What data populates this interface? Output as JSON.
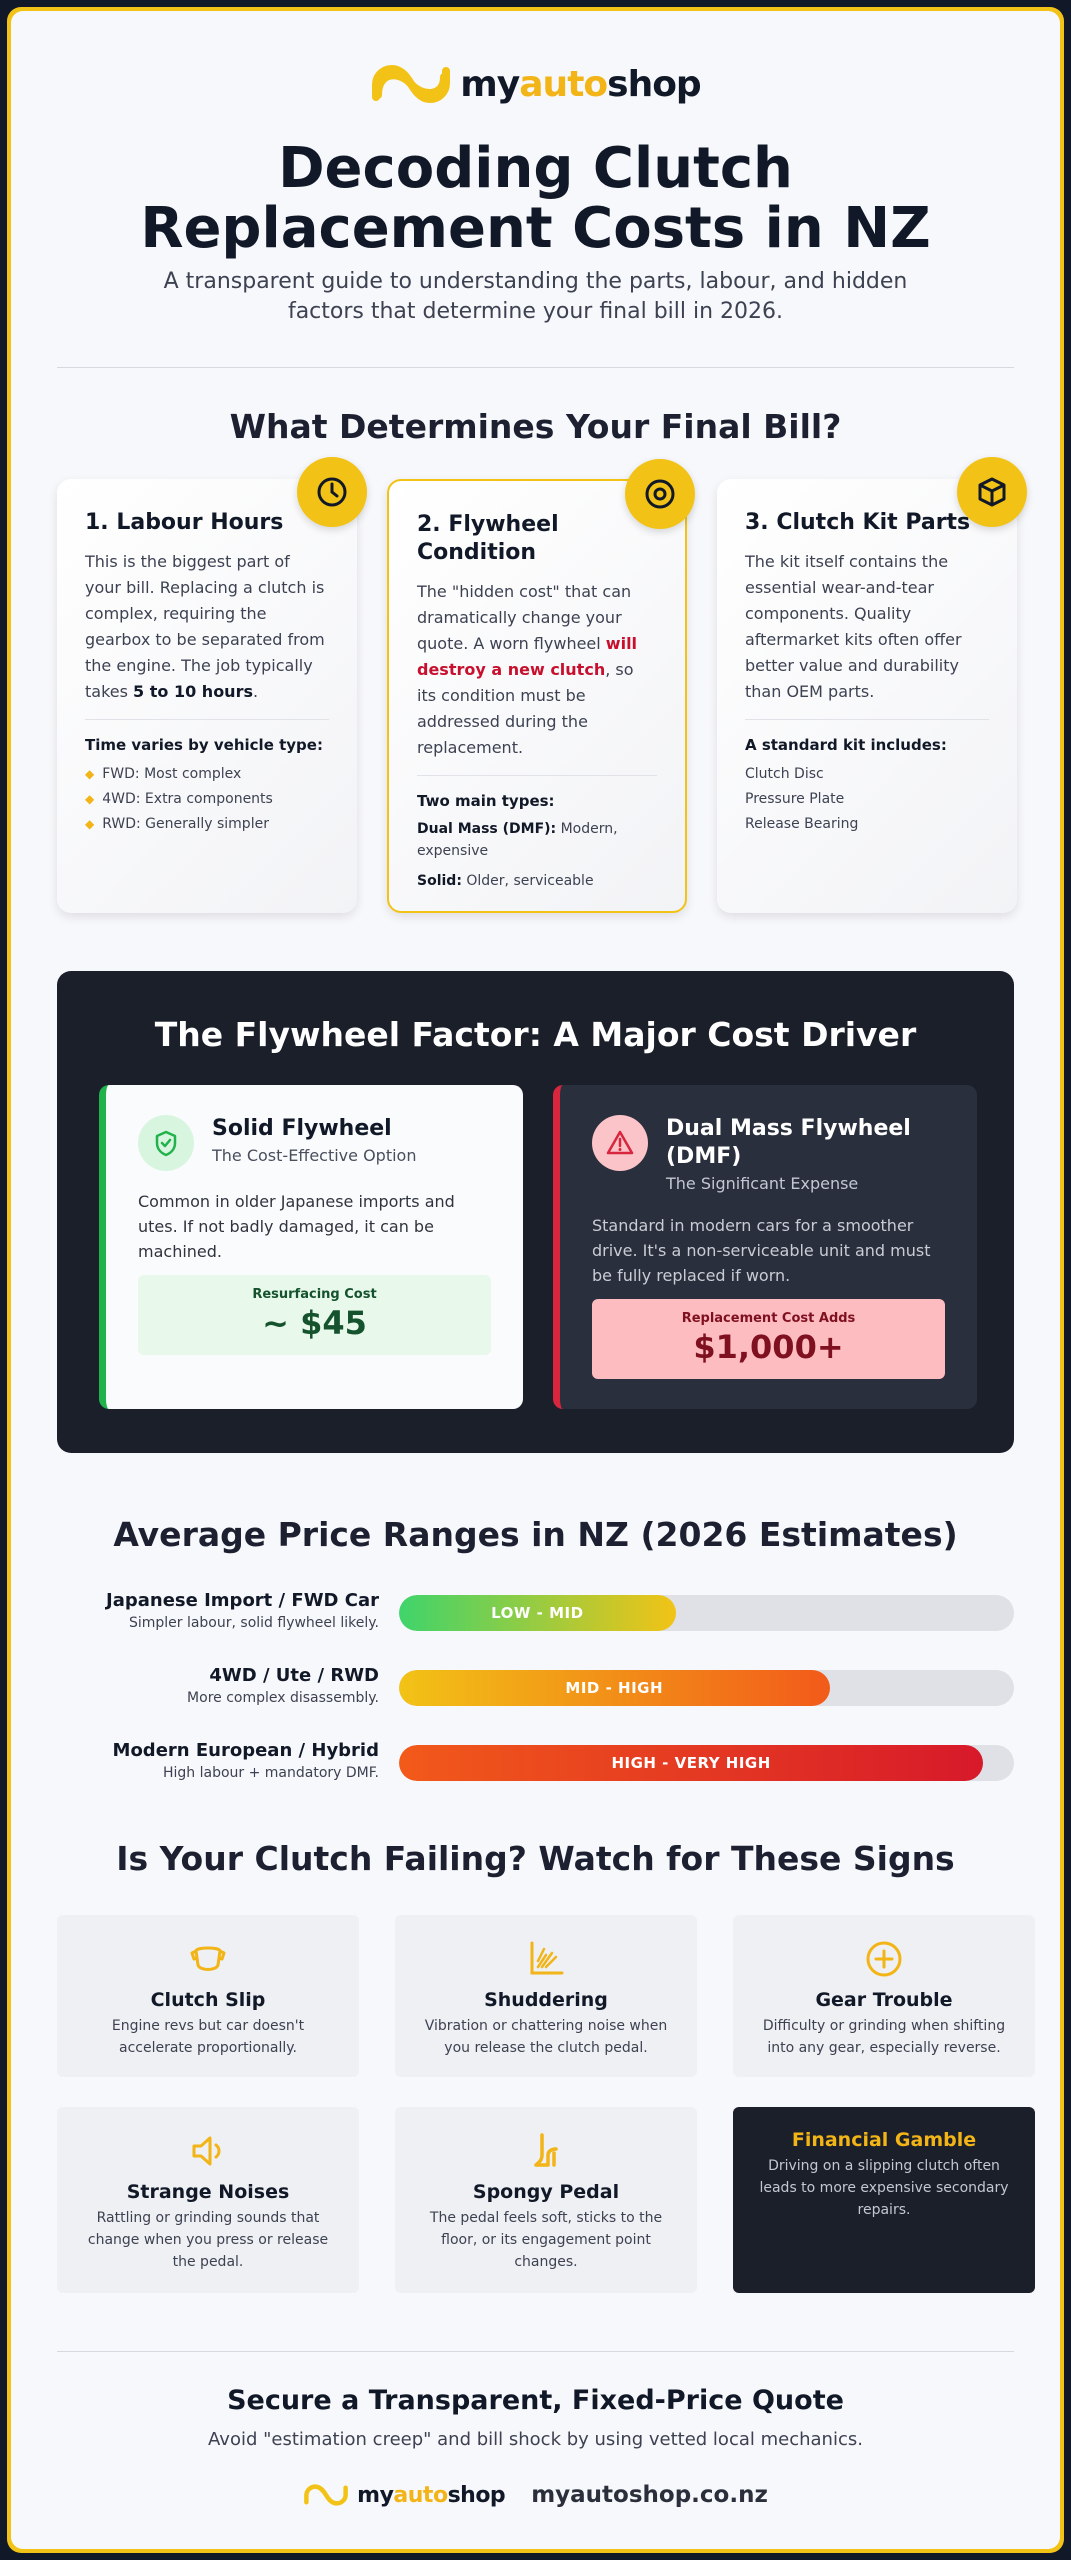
{
  "brand": {
    "name_prefix": "my",
    "name_accent": "auto",
    "name_suffix": "shop",
    "accent_color": "#f2b416",
    "logo_icon": "infinity-logo-icon"
  },
  "hero": {
    "title": "Decoding Clutch Replacement Costs in NZ",
    "subtitle": "A transparent guide to understanding the parts, labour, and hidden factors that determine your final bill in 2026."
  },
  "factors": {
    "heading": "What Determines Your Final Bill?",
    "cards": [
      {
        "icon": "clock-icon",
        "title": "1. Labour Hours",
        "body_pre": "This is the biggest part of your bill. Replacing a clutch is complex, requiring the gearbox to be separated from the engine. The job typically takes ",
        "body_bold": "5 to 10 hours",
        "body_post": ".",
        "list_heading": "Time varies by vehicle type:",
        "list": [
          "FWD: Most complex",
          "4WD: Extra components",
          "RWD: Generally simpler"
        ]
      },
      {
        "icon": "target-icon",
        "title": "2. Flywheel Condition",
        "body_pre": "The \"hidden cost\" that can dramatically change your quote. A worn flywheel ",
        "body_red": "will destroy a new clutch",
        "body_post": ", so its condition must be addressed during the replacement.",
        "list_heading": "Two main types:",
        "types": [
          {
            "name": "Dual Mass (DMF):",
            "desc": " Modern, expensive"
          },
          {
            "name": "Solid:",
            "desc": " Older, serviceable"
          }
        ]
      },
      {
        "icon": "box-icon",
        "title": "3. Clutch Kit Parts",
        "body": "The kit itself contains the essential wear-and-tear components. Quality aftermarket kits often offer better value and durability than OEM parts.",
        "list_heading": "A standard kit includes:",
        "list": [
          "Clutch Disc",
          "Pressure Plate",
          "Release Bearing"
        ]
      }
    ]
  },
  "flywheel": {
    "heading": "The Flywheel Factor: A Major Cost Driver",
    "solid": {
      "name": "Solid Flywheel",
      "tag": "The Cost-Effective Option",
      "desc": "Common in older Japanese imports and utes. If not badly damaged, it can be machined.",
      "cost_label": "Resurfacing Cost",
      "cost_value": "~ $45",
      "color": "#21b24c"
    },
    "dmf": {
      "name": "Dual Mass Flywheel (DMF)",
      "tag": "The Significant Expense",
      "desc": "Standard in modern cars for a smoother drive. It's a non-serviceable unit and must be fully replaced if worn.",
      "cost_label": "Replacement Cost Adds",
      "cost_value": "$1,000+",
      "color": "#d7263d"
    }
  },
  "prices": {
    "heading": "Average Price Ranges in NZ (2026 Estimates)",
    "rows": [
      {
        "name": "Japanese Import / FWD Car",
        "desc": "Simpler labour, solid flywheel likely.",
        "band": "LOW - MID",
        "fill": 0.45
      },
      {
        "name": "4WD / Ute / RWD",
        "desc": "More complex disassembly.",
        "band": "MID - HIGH",
        "fill": 0.7
      },
      {
        "name": "Modern European / Hybrid",
        "desc": "High labour + mandatory DMF.",
        "band": "HIGH - VERY HIGH",
        "fill": 0.95
      }
    ]
  },
  "signs": {
    "heading": "Is Your Clutch Failing? Watch for These Signs",
    "items": [
      {
        "icon": "slip-icon",
        "title": "Clutch Slip",
        "desc": "Engine revs but car doesn't accelerate proportionally."
      },
      {
        "icon": "vibration-icon",
        "title": "Shuddering",
        "desc": "Vibration or chattering noise when you release the clutch pedal."
      },
      {
        "icon": "plus-circle-icon",
        "title": "Gear Trouble",
        "desc": "Difficulty or grinding when shifting into any gear, especially reverse."
      },
      {
        "icon": "speaker-icon",
        "title": "Strange Noises",
        "desc": "Rattling or grinding sounds that change when you press or release the pedal."
      },
      {
        "icon": "pedal-icon",
        "title": "Spongy Pedal",
        "desc": "The pedal feels soft, sticks to the floor, or its engagement point changes."
      },
      {
        "icon": "",
        "title": "Financial Gamble",
        "desc": "Driving on a slipping clutch often leads to more expensive secondary repairs."
      }
    ]
  },
  "footer": {
    "title": "Secure a Transparent, Fixed-Price Quote",
    "subtitle": "Avoid \"estimation creep\" and bill shock by using vetted local mechanics.",
    "url": "myautoshop.co.nz"
  }
}
